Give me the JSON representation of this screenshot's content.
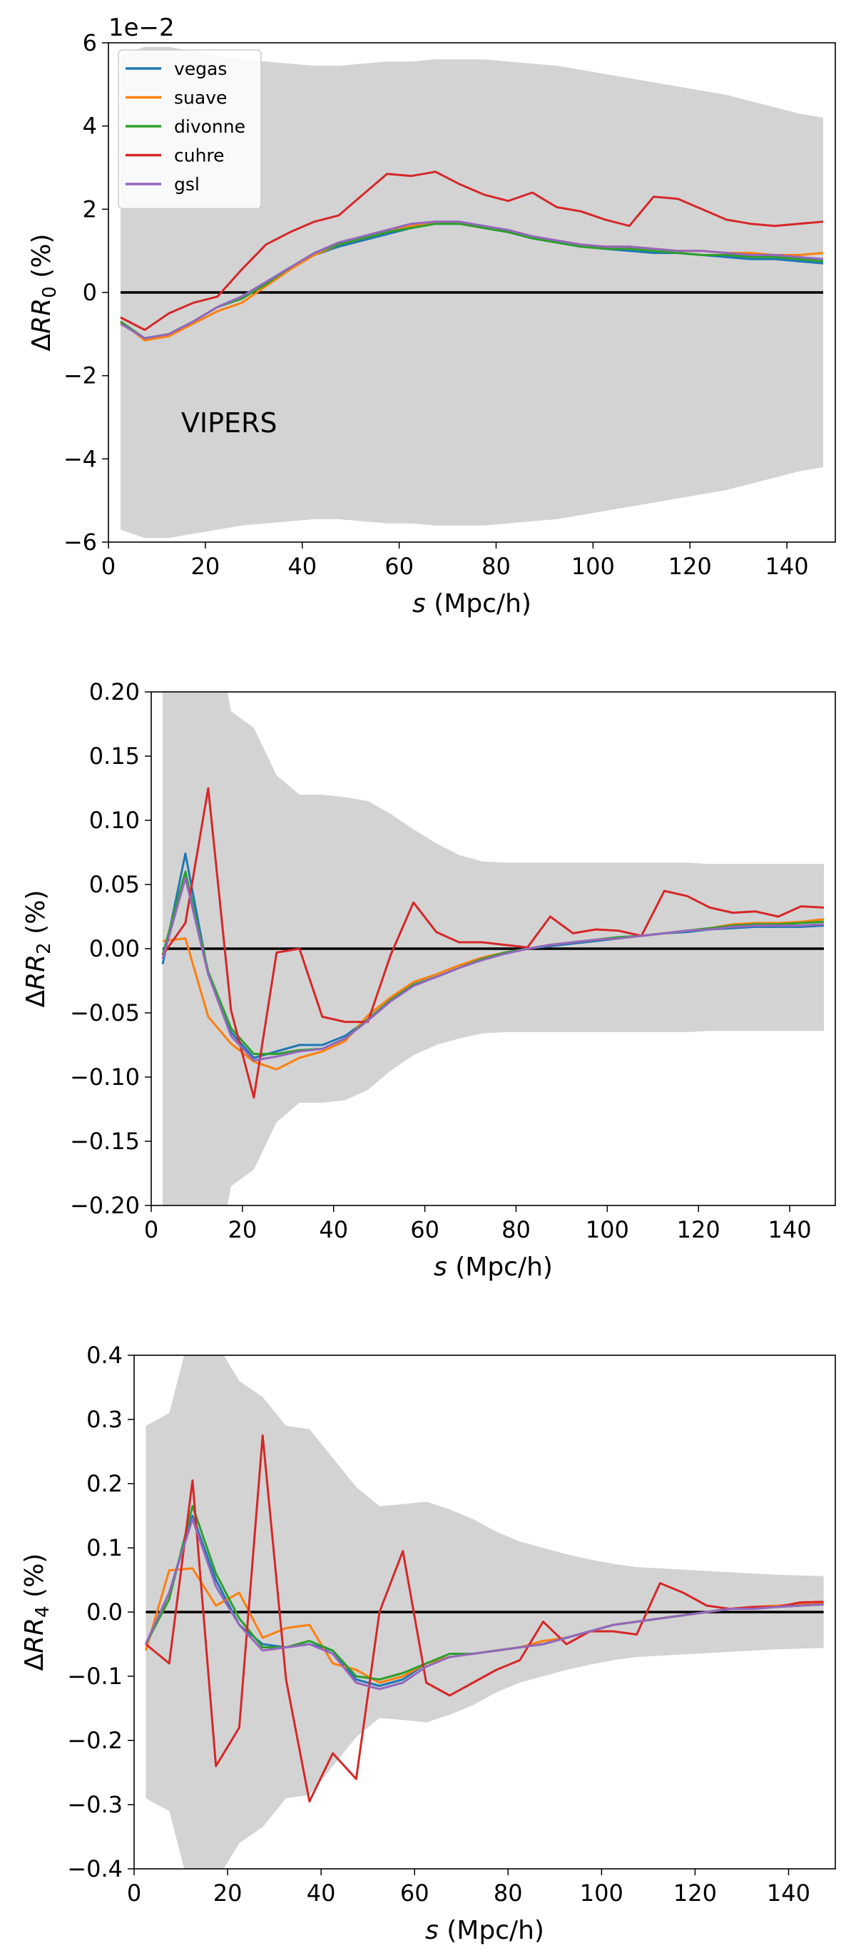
{
  "chart_data": [
    {
      "type": "line",
      "xlabel_var": "s",
      "xlabel_unit": " (Mpc/h)",
      "ylabel_base": "ΔRR",
      "ylabel_sub": "0",
      "ylabel_unit": " (%)",
      "axis_offset_text": "1e−2",
      "annotation": "VIPERS",
      "xlim": [
        0,
        150
      ],
      "ylim": [
        -6,
        6
      ],
      "xticks": [
        0,
        20,
        40,
        60,
        80,
        100,
        120,
        140
      ],
      "yticks": [
        -6,
        -4,
        -2,
        0,
        2,
        4,
        6
      ],
      "ytick_labels": [
        "−6",
        "−4",
        "−2",
        "0",
        "2",
        "4",
        "6"
      ],
      "legend_position": "upper left",
      "x": [
        2.5,
        7.5,
        12.5,
        17.5,
        22.5,
        27.5,
        32.5,
        37.5,
        42.5,
        47.5,
        52.5,
        57.5,
        62.5,
        67.5,
        72.5,
        77.5,
        82.5,
        87.5,
        92.5,
        97.5,
        102.5,
        107.5,
        112.5,
        117.5,
        122.5,
        127.5,
        132.5,
        137.5,
        142.5,
        147.5
      ],
      "band_upper": [
        5.7,
        5.9,
        5.9,
        5.8,
        5.7,
        5.6,
        5.55,
        5.5,
        5.45,
        5.45,
        5.5,
        5.55,
        5.55,
        5.6,
        5.6,
        5.6,
        5.55,
        5.5,
        5.45,
        5.35,
        5.25,
        5.15,
        5.05,
        4.95,
        4.85,
        4.75,
        4.6,
        4.45,
        4.3,
        4.2
      ],
      "band_lower": [
        -5.7,
        -5.9,
        -5.9,
        -5.8,
        -5.7,
        -5.6,
        -5.55,
        -5.5,
        -5.45,
        -5.45,
        -5.5,
        -5.55,
        -5.55,
        -5.6,
        -5.6,
        -5.6,
        -5.55,
        -5.5,
        -5.45,
        -5.35,
        -5.25,
        -5.15,
        -5.05,
        -4.95,
        -4.85,
        -4.75,
        -4.6,
        -4.45,
        -4.3,
        -4.2
      ],
      "series": [
        {
          "name": "vegas",
          "color": "#1f77b4",
          "values": [
            -0.7,
            -1.1,
            -1.0,
            -0.7,
            -0.35,
            -0.1,
            0.25,
            0.6,
            0.9,
            1.1,
            1.25,
            1.4,
            1.55,
            1.65,
            1.65,
            1.55,
            1.45,
            1.3,
            1.2,
            1.1,
            1.05,
            1.0,
            0.95,
            0.95,
            0.9,
            0.85,
            0.8,
            0.8,
            0.75,
            0.7
          ]
        },
        {
          "name": "suave",
          "color": "#ff7f0e",
          "values": [
            -0.7,
            -1.15,
            -1.05,
            -0.75,
            -0.45,
            -0.25,
            0.15,
            0.55,
            0.9,
            1.15,
            1.3,
            1.45,
            1.6,
            1.7,
            1.65,
            1.55,
            1.5,
            1.35,
            1.25,
            1.15,
            1.1,
            1.1,
            1.05,
            1.0,
            1.0,
            0.95,
            0.95,
            0.9,
            0.9,
            0.95
          ]
        },
        {
          "name": "divonne",
          "color": "#2ca02c",
          "values": [
            -0.7,
            -1.1,
            -1.0,
            -0.7,
            -0.35,
            -0.15,
            0.2,
            0.6,
            0.95,
            1.15,
            1.3,
            1.45,
            1.55,
            1.65,
            1.65,
            1.55,
            1.45,
            1.3,
            1.2,
            1.1,
            1.05,
            1.05,
            1.0,
            0.95,
            0.9,
            0.9,
            0.85,
            0.85,
            0.8,
            0.75
          ]
        },
        {
          "name": "cuhre",
          "color": "#d62728",
          "values": [
            -0.6,
            -0.9,
            -0.5,
            -0.25,
            -0.1,
            0.55,
            1.15,
            1.45,
            1.7,
            1.85,
            2.35,
            2.85,
            2.8,
            2.9,
            2.6,
            2.35,
            2.2,
            2.4,
            2.05,
            1.95,
            1.75,
            1.6,
            2.3,
            2.25,
            2.0,
            1.75,
            1.65,
            1.6,
            1.65,
            1.7
          ]
        },
        {
          "name": "gsl",
          "color": "#9467bd",
          "values": [
            -0.75,
            -1.1,
            -1.0,
            -0.7,
            -0.35,
            -0.1,
            0.25,
            0.6,
            0.95,
            1.2,
            1.35,
            1.5,
            1.65,
            1.7,
            1.7,
            1.6,
            1.5,
            1.35,
            1.25,
            1.15,
            1.1,
            1.1,
            1.05,
            1.0,
            1.0,
            0.95,
            0.9,
            0.9,
            0.85,
            0.8
          ]
        }
      ]
    },
    {
      "type": "line",
      "xlabel_var": "s",
      "xlabel_unit": " (Mpc/h)",
      "ylabel_base": "ΔRR",
      "ylabel_sub": "2",
      "ylabel_unit": " (%)",
      "xlim": [
        0,
        150
      ],
      "ylim": [
        -0.2,
        0.2
      ],
      "xticks": [
        0,
        20,
        40,
        60,
        80,
        100,
        120,
        140
      ],
      "yticks": [
        -0.2,
        -0.15,
        -0.1,
        -0.05,
        0.0,
        0.05,
        0.1,
        0.15,
        0.2
      ],
      "ytick_labels": [
        "−0.20",
        "−0.15",
        "−0.10",
        "−0.05",
        "0.00",
        "0.05",
        "0.10",
        "0.15",
        "0.20"
      ],
      "x": [
        2.5,
        7.5,
        12.5,
        17.5,
        22.5,
        27.5,
        32.5,
        37.5,
        42.5,
        47.5,
        52.5,
        57.5,
        62.5,
        67.5,
        72.5,
        77.5,
        82.5,
        87.5,
        92.5,
        97.5,
        102.5,
        107.5,
        112.5,
        117.5,
        122.5,
        127.5,
        132.5,
        137.5,
        142.5,
        147.5
      ],
      "band_upper": [
        0.25,
        0.3,
        0.28,
        0.185,
        0.172,
        0.135,
        0.12,
        0.12,
        0.118,
        0.115,
        0.105,
        0.093,
        0.082,
        0.073,
        0.068,
        0.067,
        0.067,
        0.067,
        0.067,
        0.067,
        0.067,
        0.067,
        0.067,
        0.067,
        0.066,
        0.066,
        0.066,
        0.066,
        0.066,
        0.066
      ],
      "band_lower": [
        -0.25,
        -0.3,
        -0.28,
        -0.185,
        -0.172,
        -0.135,
        -0.12,
        -0.12,
        -0.118,
        -0.11,
        -0.095,
        -0.083,
        -0.075,
        -0.07,
        -0.066,
        -0.065,
        -0.065,
        -0.065,
        -0.065,
        -0.065,
        -0.065,
        -0.065,
        -0.065,
        -0.065,
        -0.064,
        -0.064,
        -0.064,
        -0.064,
        -0.064,
        -0.064
      ],
      "series": [
        {
          "name": "vegas",
          "color": "#1f77b4",
          "values": [
            -0.012,
            0.074,
            -0.02,
            -0.065,
            -0.085,
            -0.08,
            -0.075,
            -0.075,
            -0.068,
            -0.055,
            -0.04,
            -0.028,
            -0.022,
            -0.015,
            -0.008,
            -0.004,
            0.0,
            0.002,
            0.004,
            0.006,
            0.008,
            0.01,
            0.012,
            0.013,
            0.015,
            0.016,
            0.017,
            0.017,
            0.017,
            0.018
          ]
        },
        {
          "name": "suave",
          "color": "#ff7f0e",
          "values": [
            0.006,
            0.008,
            -0.053,
            -0.074,
            -0.088,
            -0.094,
            -0.085,
            -0.08,
            -0.072,
            -0.052,
            -0.038,
            -0.026,
            -0.02,
            -0.013,
            -0.007,
            -0.003,
            0.0,
            0.003,
            0.005,
            0.007,
            0.008,
            0.01,
            0.012,
            0.014,
            0.016,
            0.019,
            0.02,
            0.02,
            0.021,
            0.023
          ]
        },
        {
          "name": "divonne",
          "color": "#2ca02c",
          "values": [
            -0.005,
            0.06,
            -0.018,
            -0.062,
            -0.082,
            -0.082,
            -0.079,
            -0.078,
            -0.07,
            -0.055,
            -0.04,
            -0.028,
            -0.022,
            -0.015,
            -0.008,
            -0.003,
            0.0,
            0.003,
            0.005,
            0.007,
            0.009,
            0.01,
            0.012,
            0.014,
            0.016,
            0.018,
            0.019,
            0.019,
            0.02,
            0.021
          ]
        },
        {
          "name": "cuhre",
          "color": "#d62728",
          "values": [
            -0.005,
            0.02,
            0.125,
            -0.048,
            -0.116,
            -0.003,
            0.0,
            -0.053,
            -0.057,
            -0.057,
            -0.005,
            0.036,
            0.013,
            0.005,
            0.005,
            0.003,
            0.001,
            0.025,
            0.012,
            0.015,
            0.014,
            0.01,
            0.045,
            0.041,
            0.032,
            0.028,
            0.029,
            0.025,
            0.033,
            0.032
          ]
        },
        {
          "name": "gsl",
          "color": "#9467bd",
          "values": [
            -0.008,
            0.055,
            -0.02,
            -0.068,
            -0.087,
            -0.084,
            -0.08,
            -0.078,
            -0.07,
            -0.056,
            -0.041,
            -0.029,
            -0.022,
            -0.015,
            -0.009,
            -0.004,
            0.0,
            0.003,
            0.005,
            0.007,
            0.008,
            0.01,
            0.012,
            0.014,
            0.015,
            0.017,
            0.018,
            0.018,
            0.018,
            0.019
          ]
        }
      ]
    },
    {
      "type": "line",
      "xlabel_var": "s",
      "xlabel_unit": " (Mpc/h)",
      "ylabel_base": "ΔRR",
      "ylabel_sub": "4",
      "ylabel_unit": " (%)",
      "xlim": [
        0,
        150
      ],
      "ylim": [
        -0.4,
        0.4
      ],
      "xticks": [
        0,
        20,
        40,
        60,
        80,
        100,
        120,
        140
      ],
      "yticks": [
        -0.4,
        -0.3,
        -0.2,
        -0.1,
        0.0,
        0.1,
        0.2,
        0.3,
        0.4
      ],
      "ytick_labels": [
        "−0.4",
        "−0.3",
        "−0.2",
        "−0.1",
        "0.0",
        "0.1",
        "0.2",
        "0.3",
        "0.4"
      ],
      "x": [
        2.5,
        7.5,
        12.5,
        17.5,
        22.5,
        27.5,
        32.5,
        37.5,
        42.5,
        47.5,
        52.5,
        57.5,
        62.5,
        67.5,
        72.5,
        77.5,
        82.5,
        87.5,
        92.5,
        97.5,
        102.5,
        107.5,
        112.5,
        117.5,
        122.5,
        127.5,
        132.5,
        137.5,
        142.5,
        147.5
      ],
      "band_upper": [
        0.29,
        0.31,
        0.45,
        0.42,
        0.36,
        0.335,
        0.29,
        0.285,
        0.24,
        0.195,
        0.165,
        0.168,
        0.172,
        0.16,
        0.145,
        0.125,
        0.11,
        0.1,
        0.09,
        0.082,
        0.075,
        0.07,
        0.068,
        0.066,
        0.064,
        0.062,
        0.06,
        0.058,
        0.057,
        0.056
      ],
      "band_lower": [
        -0.29,
        -0.31,
        -0.45,
        -0.42,
        -0.36,
        -0.335,
        -0.29,
        -0.285,
        -0.24,
        -0.195,
        -0.165,
        -0.168,
        -0.172,
        -0.16,
        -0.145,
        -0.125,
        -0.11,
        -0.1,
        -0.09,
        -0.082,
        -0.075,
        -0.07,
        -0.068,
        -0.066,
        -0.064,
        -0.062,
        -0.06,
        -0.058,
        -0.057,
        -0.056
      ],
      "series": [
        {
          "name": "vegas",
          "color": "#1f77b4",
          "values": [
            -0.05,
            0.03,
            0.15,
            0.05,
            -0.02,
            -0.05,
            -0.055,
            -0.05,
            -0.06,
            -0.105,
            -0.115,
            -0.105,
            -0.08,
            -0.07,
            -0.065,
            -0.06,
            -0.055,
            -0.05,
            -0.04,
            -0.03,
            -0.02,
            -0.015,
            -0.01,
            -0.005,
            0.0,
            0.005,
            0.005,
            0.008,
            0.01,
            0.012
          ]
        },
        {
          "name": "suave",
          "color": "#ff7f0e",
          "values": [
            -0.06,
            0.065,
            0.068,
            0.01,
            0.03,
            -0.04,
            -0.025,
            -0.02,
            -0.08,
            -0.09,
            -0.11,
            -0.1,
            -0.08,
            -0.07,
            -0.065,
            -0.06,
            -0.055,
            -0.045,
            -0.04,
            -0.03,
            -0.02,
            -0.015,
            -0.01,
            -0.005,
            0.0,
            0.005,
            0.008,
            0.01,
            0.012,
            0.015
          ]
        },
        {
          "name": "divonne",
          "color": "#2ca02c",
          "values": [
            -0.05,
            0.02,
            0.165,
            0.06,
            -0.01,
            -0.055,
            -0.055,
            -0.045,
            -0.06,
            -0.1,
            -0.105,
            -0.095,
            -0.08,
            -0.065,
            -0.065,
            -0.06,
            -0.055,
            -0.05,
            -0.04,
            -0.03,
            -0.02,
            -0.015,
            -0.01,
            -0.005,
            0.0,
            0.005,
            0.006,
            0.008,
            0.01,
            0.012
          ]
        },
        {
          "name": "cuhre",
          "color": "#d62728",
          "values": [
            -0.05,
            -0.08,
            0.205,
            -0.24,
            -0.18,
            0.275,
            -0.105,
            -0.295,
            -0.22,
            -0.26,
            0.0,
            0.095,
            -0.11,
            -0.13,
            -0.11,
            -0.09,
            -0.075,
            -0.015,
            -0.05,
            -0.03,
            -0.03,
            -0.035,
            0.045,
            0.03,
            0.01,
            0.005,
            0.008,
            0.008,
            0.015,
            0.016
          ]
        },
        {
          "name": "gsl",
          "color": "#9467bd",
          "values": [
            -0.05,
            0.03,
            0.145,
            0.04,
            -0.02,
            -0.06,
            -0.055,
            -0.05,
            -0.065,
            -0.11,
            -0.12,
            -0.11,
            -0.085,
            -0.07,
            -0.065,
            -0.06,
            -0.055,
            -0.05,
            -0.04,
            -0.03,
            -0.02,
            -0.015,
            -0.01,
            -0.005,
            0.0,
            0.005,
            0.005,
            0.008,
            0.01,
            0.012
          ]
        }
      ]
    }
  ]
}
